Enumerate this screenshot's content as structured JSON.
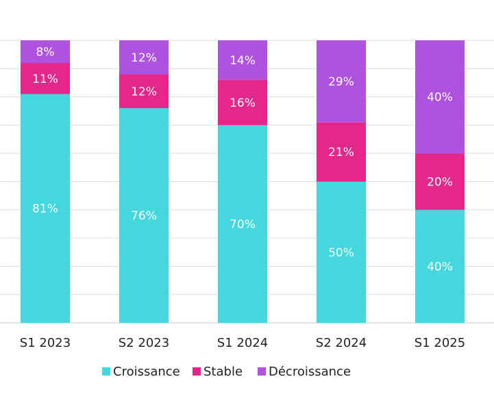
{
  "chart_data": {
    "type": "bar",
    "stacked": true,
    "percent_stacked": true,
    "categories": [
      "S1 2023",
      "S2 2023",
      "S1 2024",
      "S2 2024",
      "S1 2025"
    ],
    "series": [
      {
        "name": "Croissance",
        "color": "#44d7dd",
        "values": [
          81,
          76,
          70,
          50,
          40
        ],
        "labels": [
          "81%",
          "76%",
          "70%",
          "50%",
          "40%"
        ]
      },
      {
        "name": "Stable",
        "color": "#e4278a",
        "values": [
          11,
          12,
          16,
          21,
          20
        ],
        "labels": [
          "11%",
          "12%",
          "16%",
          "21%",
          "20%"
        ]
      },
      {
        "name": "Décroissance",
        "color": "#b052e0",
        "values": [
          8,
          12,
          14,
          29,
          40
        ],
        "labels": [
          "8%",
          "12%",
          "14%",
          "29%",
          "40%"
        ]
      }
    ],
    "ylim": [
      0,
      100
    ],
    "grid": true,
    "legend_position": "bottom"
  }
}
